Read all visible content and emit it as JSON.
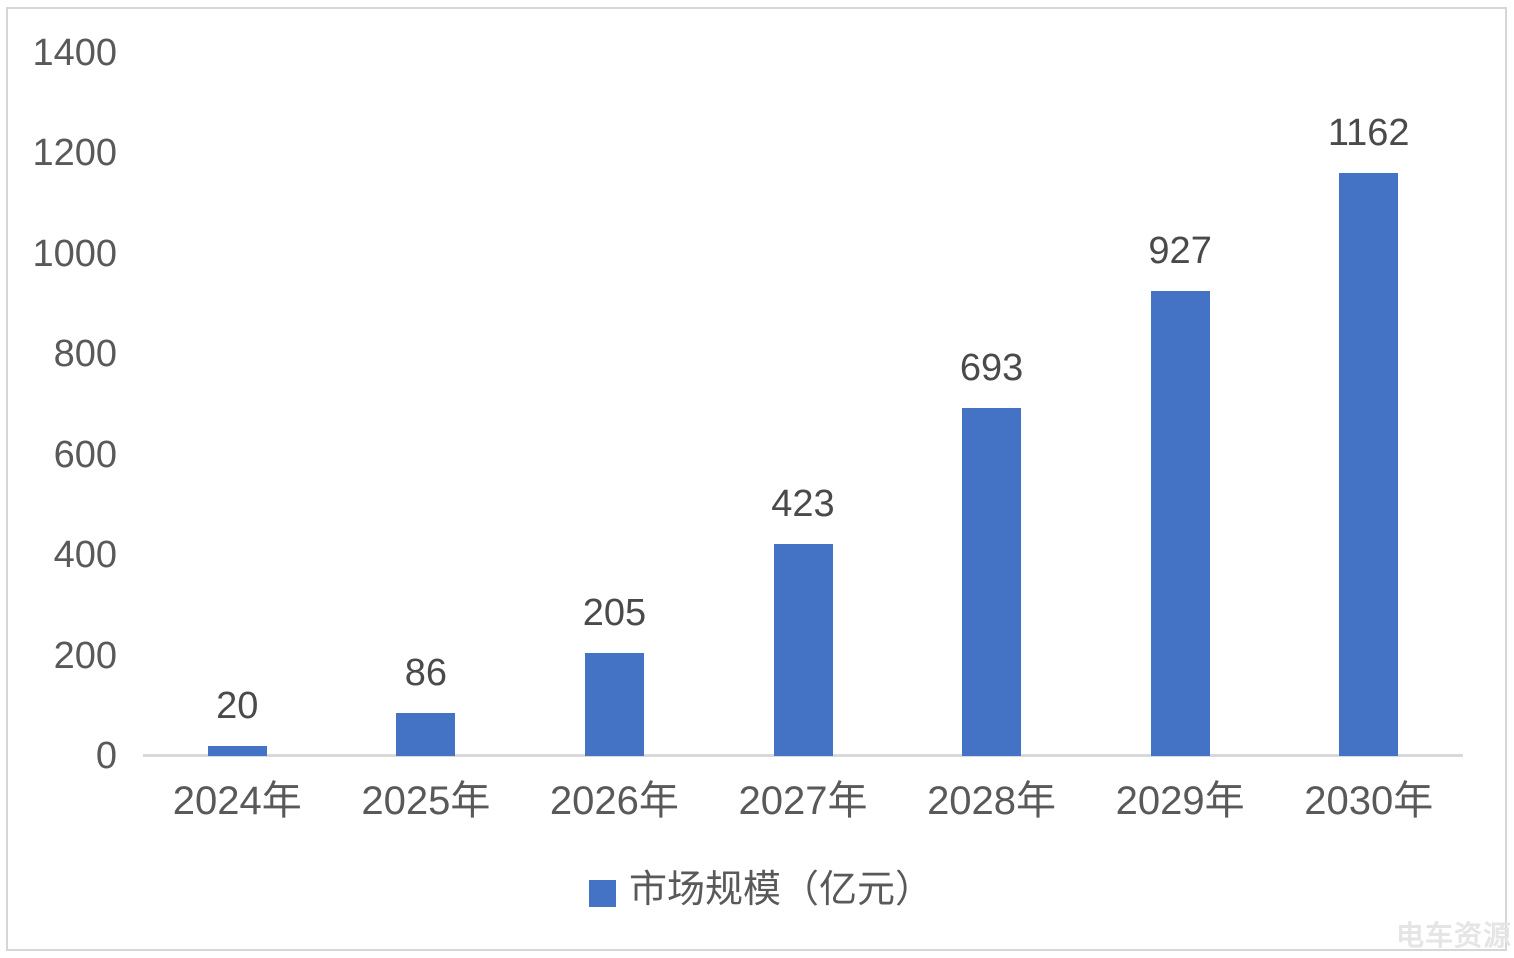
{
  "chart_data": {
    "type": "bar",
    "title": "",
    "xlabel": "",
    "ylabel": "",
    "categories": [
      "2024年",
      "2025年",
      "2026年",
      "2027年",
      "2028年",
      "2029年",
      "2030年"
    ],
    "series": [
      {
        "name": "市场规模（亿元）",
        "values": [
          20,
          86,
          205,
          423,
          693,
          927,
          1162
        ]
      }
    ],
    "ylim": [
      0,
      1400
    ],
    "y_ticks": [
      0,
      200,
      400,
      600,
      800,
      1000,
      1200,
      1400
    ],
    "grid": false,
    "data_labels_shown": true,
    "legend_position": "bottom-center"
  },
  "legend": {
    "label": "市场规模（亿元）",
    "swatch_color": "#4472C4"
  },
  "watermark": {
    "text": "电车资源"
  },
  "colors": {
    "bar": "#4472C4",
    "axis_line": "#D9D9D9",
    "axis_text": "#595959",
    "data_label_text": "#4A4A4A",
    "border": "#D6D6D6",
    "watermark_text": "#E5E5E5",
    "background": "#FFFFFF"
  }
}
